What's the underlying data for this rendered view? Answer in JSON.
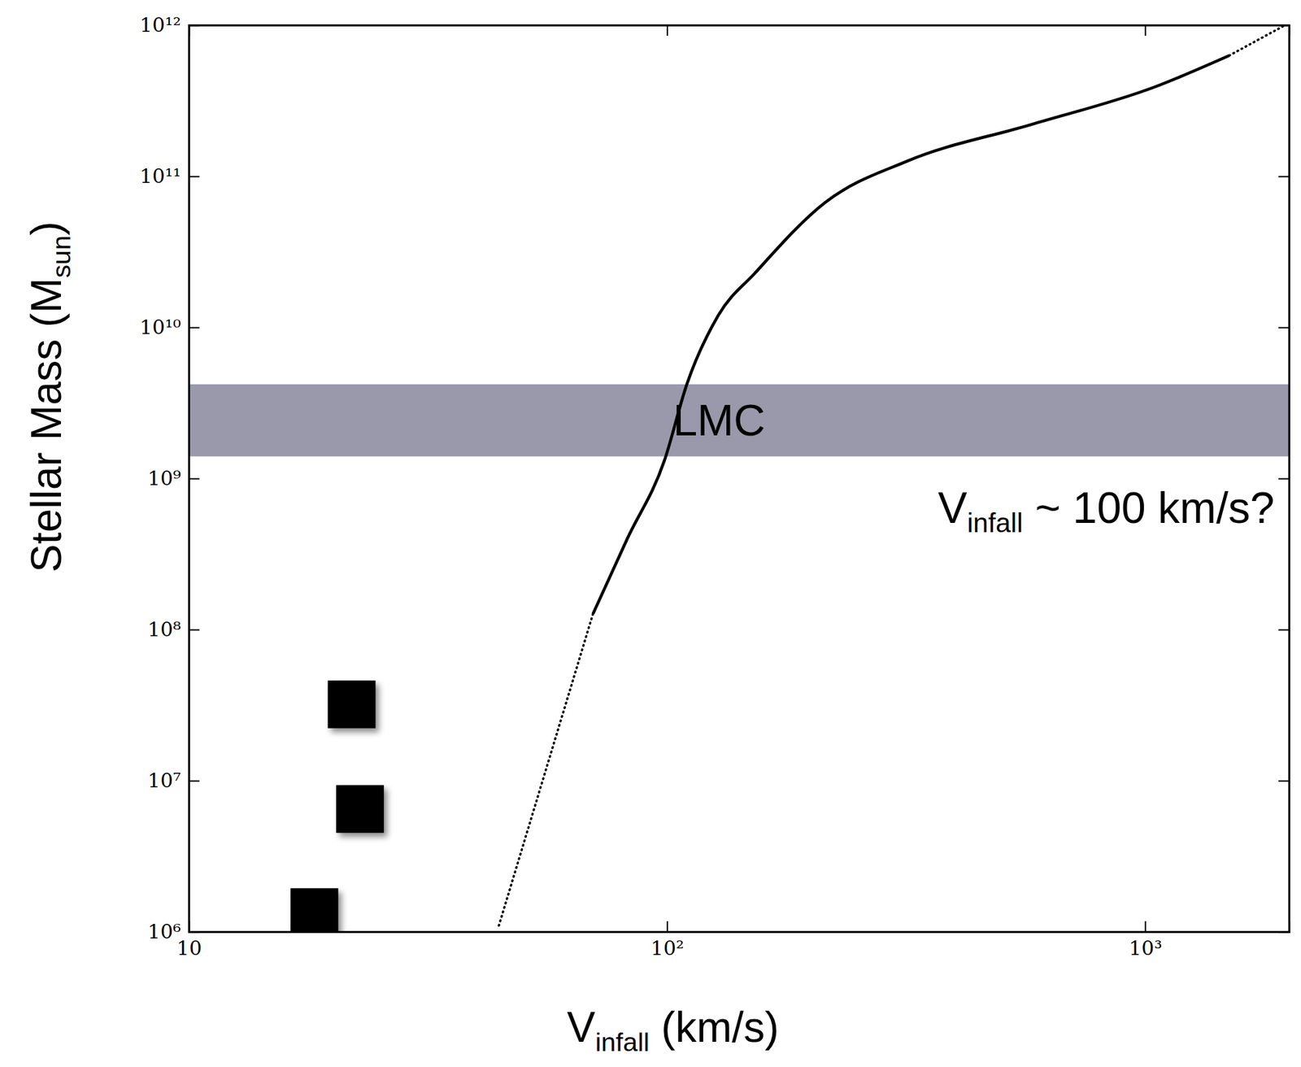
{
  "chart_data": {
    "type": "line",
    "log": true,
    "grid": false,
    "xlabel": [
      {
        "text": "V"
      },
      {
        "text": "infall",
        "sub": true
      },
      {
        "text": " (km/s)"
      }
    ],
    "ylabel": [
      {
        "text": "Stellar Mass (M"
      },
      {
        "text": "sun",
        "sub": true
      },
      {
        "text": ")"
      }
    ],
    "xlim": [
      10,
      2000
    ],
    "ylim": [
      1000000,
      1000000000000
    ],
    "xticks": [
      10,
      {
        "value": 100,
        "label": "10²"
      },
      {
        "value": 1000,
        "label": "10³"
      }
    ],
    "yticks": [
      {
        "value": 1000000,
        "label": "10⁶"
      },
      {
        "value": 10000000,
        "label": "10⁷"
      },
      {
        "value": 100000000,
        "label": "10⁸"
      },
      {
        "value": 1000000000,
        "label": "10⁹"
      },
      {
        "value": 10000000000,
        "label": "10¹⁰"
      },
      {
        "value": 100000000000,
        "label": "10¹¹"
      },
      {
        "value": 1000000000000,
        "label": "10¹²"
      }
    ],
    "bands": [
      {
        "label": "LMC",
        "ylim": [
          1400000000,
          4200000000
        ],
        "color": "#8e8ea2"
      }
    ],
    "annotations": [
      {
        "text": [
          {
            "text": "V"
          },
          {
            "text": "infall",
            "sub": true
          },
          {
            "text": " ~ 100 km/s?"
          }
        ]
      }
    ],
    "series": [
      {
        "type": "line",
        "line_style": "dotted",
        "color": "#000000",
        "x": [
          44.5,
          70
        ],
        "values": [
          1100000,
          127000000
        ]
      },
      {
        "type": "line",
        "line_style": "solid",
        "color": "#000000",
        "x": [
          70,
          82.6,
          98.8,
          110,
          128,
          153,
          214,
          318,
          578,
          1047,
          1500
        ],
        "values": [
          127000000,
          400000000,
          1320000000,
          4200000000,
          12000000000,
          23000000000,
          67000000000,
          126000000000,
          220000000000,
          390000000000,
          630000000000
        ]
      },
      {
        "type": "line",
        "line_style": "dotted",
        "color": "#000000",
        "x": [
          1500,
          1950
        ],
        "values": [
          630000000000,
          990000000000
        ]
      },
      {
        "type": "scatter",
        "marker": "square",
        "color": "#000000",
        "x": [
          21.9,
          22.8,
          18.3
        ],
        "values": [
          32000000,
          6500000,
          1350000
        ]
      }
    ]
  }
}
